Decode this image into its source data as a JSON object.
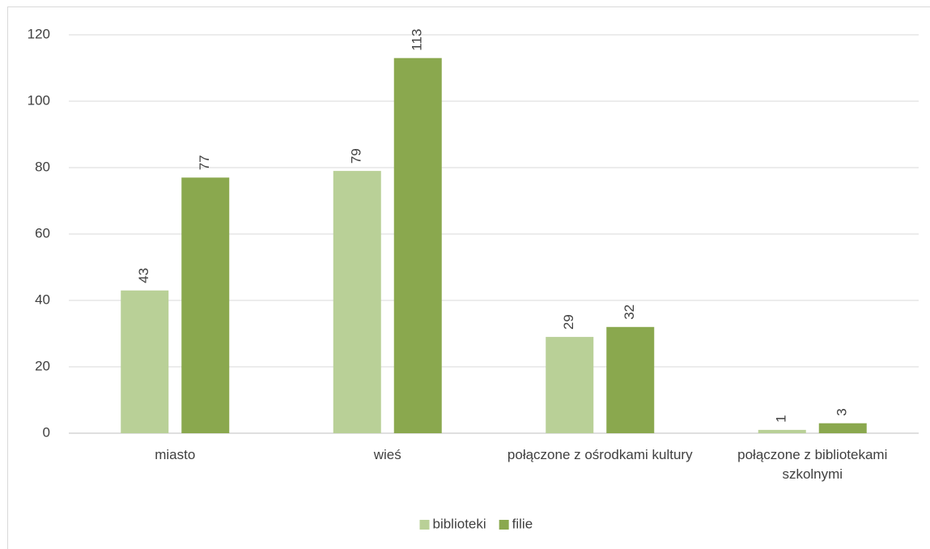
{
  "chart_data": {
    "type": "bar",
    "categories": [
      "miasto",
      "wieś",
      "połączone z ośrodkami kultury",
      "połączone z bibliotekami szkolnymi"
    ],
    "series": [
      {
        "name": "biblioteki",
        "color": "#b9d097",
        "values": [
          43,
          79,
          29,
          1
        ]
      },
      {
        "name": "filie",
        "color": "#8aa84e",
        "values": [
          77,
          113,
          32,
          3
        ]
      }
    ],
    "ylim": [
      0,
      120
    ],
    "yticks": [
      0,
      20,
      40,
      60,
      80,
      100,
      120
    ],
    "grid": true,
    "legend": "bottom"
  }
}
